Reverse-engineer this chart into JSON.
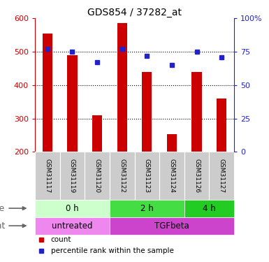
{
  "title": "GDS854 / 37282_at",
  "samples": [
    "GSM31117",
    "GSM31119",
    "GSM31120",
    "GSM31122",
    "GSM31123",
    "GSM31124",
    "GSM31126",
    "GSM31127"
  ],
  "counts": [
    555,
    490,
    310,
    585,
    440,
    253,
    440,
    360
  ],
  "percentile_ranks": [
    77,
    75,
    67,
    77,
    72,
    65,
    75,
    71
  ],
  "ylim_left": [
    200,
    600
  ],
  "ylim_right": [
    0,
    100
  ],
  "yticks_left": [
    200,
    300,
    400,
    500,
    600
  ],
  "yticks_right": [
    0,
    25,
    50,
    75,
    100
  ],
  "ytick_right_labels": [
    "0",
    "25",
    "50",
    "75",
    "100%"
  ],
  "bar_color": "#cc0000",
  "dot_color": "#2222cc",
  "bar_width": 0.4,
  "dot_size": 5,
  "gridline_yticks": [
    300,
    400,
    500
  ],
  "time_groups": [
    {
      "label": "0 h",
      "start": 0,
      "end": 3,
      "color": "#ccffcc"
    },
    {
      "label": "2 h",
      "start": 3,
      "end": 6,
      "color": "#44dd44"
    },
    {
      "label": "4 h",
      "start": 6,
      "end": 8,
      "color": "#22cc22"
    }
  ],
  "agent_groups": [
    {
      "label": "untreated",
      "start": 0,
      "end": 3,
      "color": "#ee88ee"
    },
    {
      "label": "TGFbeta",
      "start": 3,
      "end": 8,
      "color": "#cc44cc"
    }
  ],
  "sample_box_color": "#cccccc",
  "row_label_color": "#666666",
  "ylabel_left_color": "#cc0000",
  "ylabel_right_color": "#2222cc",
  "legend_items": [
    {
      "label": "count",
      "color": "#cc0000",
      "marker": "s"
    },
    {
      "label": "percentile rank within the sample",
      "color": "#2222cc",
      "marker": "s"
    }
  ]
}
